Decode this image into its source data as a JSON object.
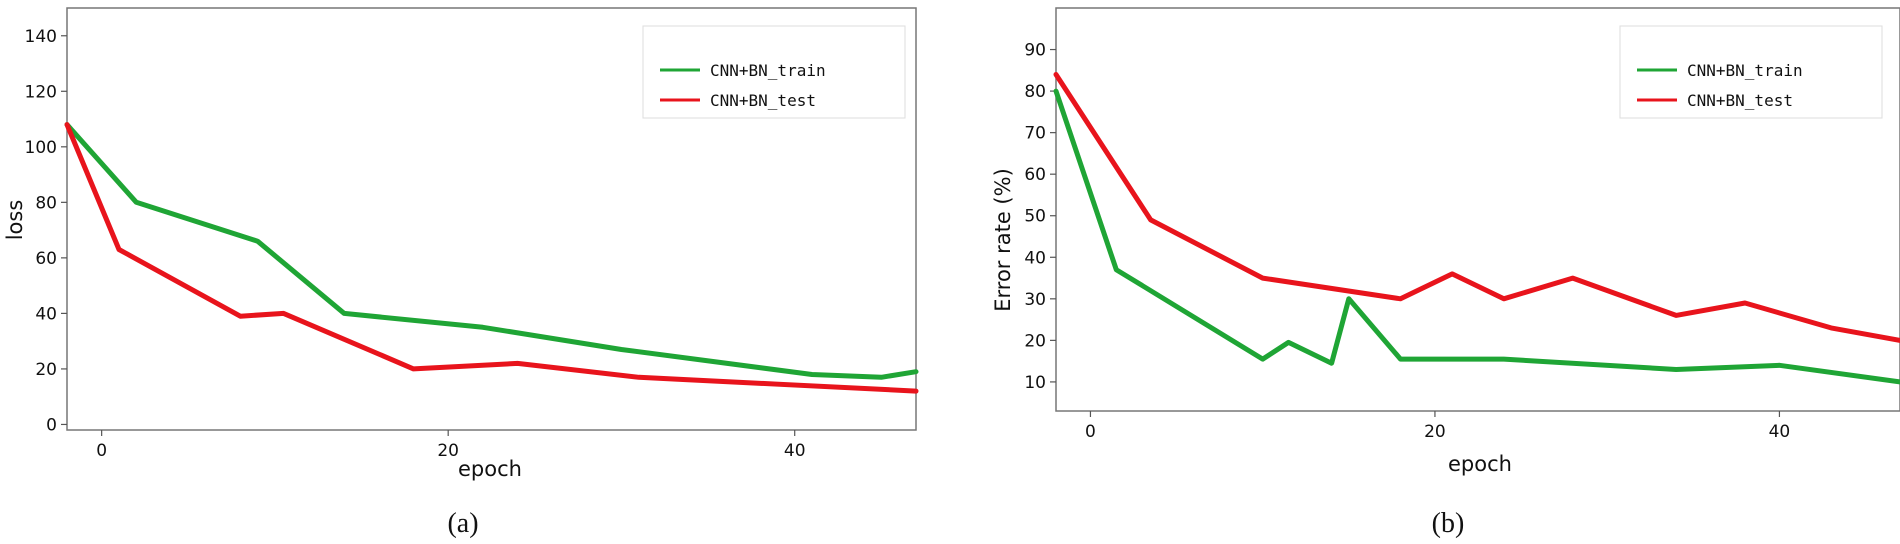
{
  "chart_data": [
    {
      "type": "line",
      "panel_label": "(a)",
      "xlabel": "epoch",
      "ylabel": "loss",
      "xlim": [
        -2,
        47
      ],
      "ylim": [
        -2,
        150
      ],
      "xticks": [
        0,
        20,
        40
      ],
      "yticks": [
        0,
        20,
        40,
        60,
        80,
        100,
        120,
        140
      ],
      "legend_position": "top-right",
      "series": [
        {
          "name": "CNN+BN_train",
          "color": "#1fa535",
          "x": [
            -2,
            2,
            9,
            14,
            22,
            30,
            41,
            45,
            47
          ],
          "y": [
            108,
            80,
            66,
            40,
            35,
            27,
            18,
            17,
            19
          ]
        },
        {
          "name": "CNN+BN_test",
          "color": "#e8141c",
          "x": [
            -2,
            1,
            8,
            10.5,
            18,
            24,
            31,
            47
          ],
          "y": [
            108,
            63,
            39,
            40,
            20,
            22,
            17,
            12
          ]
        }
      ]
    },
    {
      "type": "line",
      "panel_label": "(b)",
      "xlabel": "epoch",
      "ylabel": "Error rate (%)",
      "xlim": [
        -2,
        47
      ],
      "ylim": [
        3,
        100
      ],
      "xticks": [
        0,
        20,
        40
      ],
      "yticks": [
        10,
        20,
        30,
        40,
        50,
        60,
        70,
        80,
        90
      ],
      "legend_position": "top-right",
      "series": [
        {
          "name": "CNN+BN_train",
          "color": "#1fa535",
          "x": [
            -2,
            1.5,
            10,
            11.5,
            14,
            15,
            18,
            24,
            34,
            40,
            47
          ],
          "y": [
            80,
            37,
            15.5,
            19.5,
            14.5,
            30,
            15.5,
            15.5,
            13,
            14,
            10
          ]
        },
        {
          "name": "CNN+BN_test",
          "color": "#e8141c",
          "x": [
            -2,
            3.5,
            10,
            18,
            21,
            24,
            28,
            34,
            38,
            43,
            47
          ],
          "y": [
            84,
            49,
            35,
            30,
            36,
            30,
            35,
            26,
            29,
            23,
            20
          ]
        }
      ]
    }
  ]
}
